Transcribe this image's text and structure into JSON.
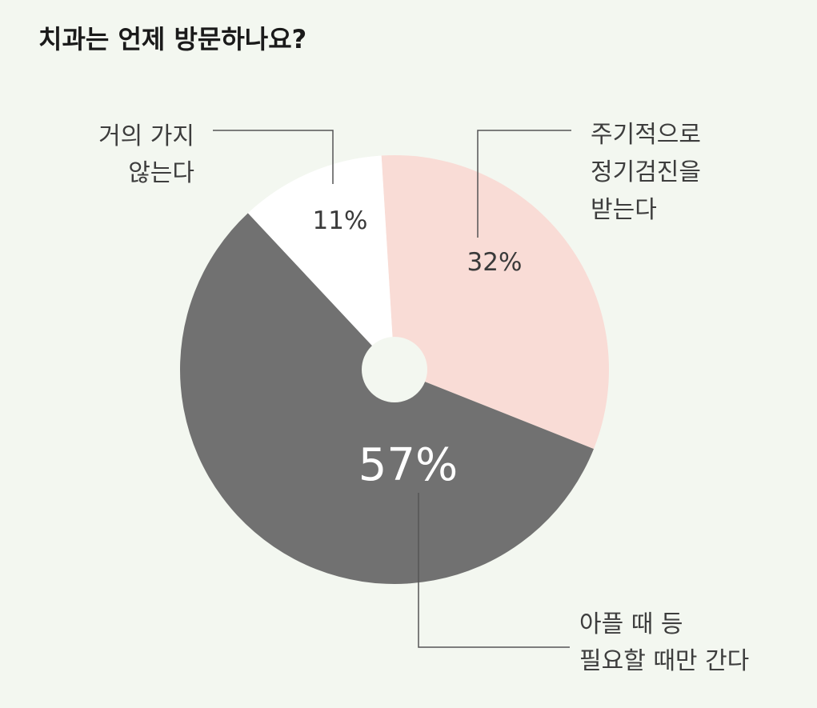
{
  "chart_data": {
    "type": "pie",
    "title": "치과는 언제 방문하나요?",
    "slices": [
      {
        "label_lines": [
          "주기적으로",
          "정기검진을",
          "받는다"
        ],
        "value": 32,
        "value_label": "32%",
        "color": "#f9dcd6"
      },
      {
        "label_lines": [
          "아플 때 등",
          "필요할 때만 간다"
        ],
        "value": 57,
        "value_label": "57%",
        "color": "#717171"
      },
      {
        "label_lines": [
          "거의 가지",
          "않는다"
        ],
        "value": 11,
        "value_label": "11%",
        "color": "#ffffff"
      }
    ],
    "center_hole": true
  },
  "colors": {
    "background": "#f3f7f0",
    "hole": "#f3f7f0",
    "leader_line": "#555555"
  }
}
